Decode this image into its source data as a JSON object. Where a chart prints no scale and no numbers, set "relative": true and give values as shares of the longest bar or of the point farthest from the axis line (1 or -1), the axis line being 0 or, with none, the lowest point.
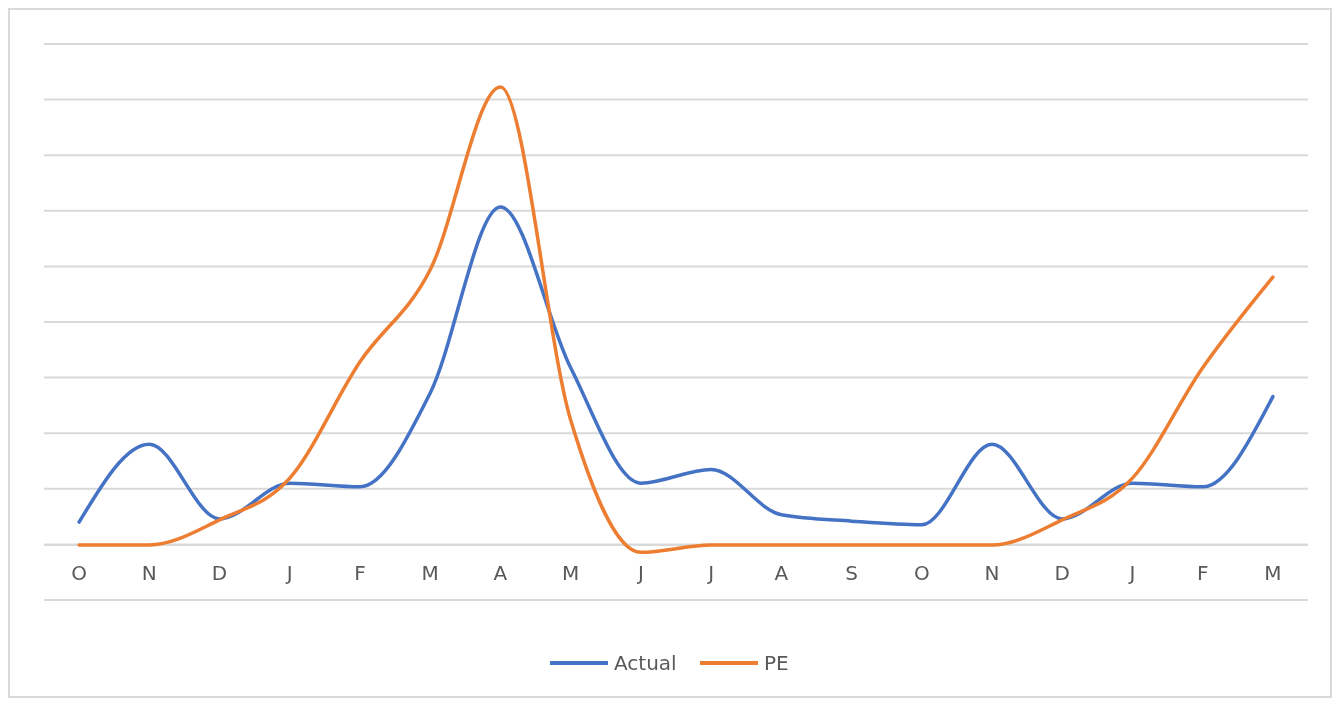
{
  "chart_data": {
    "type": "line",
    "relative": true,
    "categories": [
      "O",
      "N",
      "D",
      "J",
      "F",
      "M",
      "A",
      "M",
      "J",
      "J",
      "A",
      "S",
      "O",
      "N",
      "D",
      "J",
      "F",
      "M"
    ],
    "series": [
      {
        "name": "Actual",
        "color": "#4472c4",
        "values": [
          0.05,
          0.22,
          0.057,
          0.135,
          0.127,
          0.332,
          0.738,
          0.387,
          0.135,
          0.165,
          0.066,
          0.052,
          0.044,
          0.22,
          0.057,
          0.135,
          0.127,
          0.324
        ]
      },
      {
        "name": "PE",
        "color": "#ed7d31",
        "values": [
          0,
          0,
          0.055,
          0.146,
          0.4,
          0.601,
          1,
          0.273,
          -0.016,
          0,
          0,
          0,
          0,
          0,
          0.055,
          0.146,
          0.387,
          0.585
        ]
      }
    ],
    "grid": true,
    "legend": "bottom",
    "marker": "none",
    "line_style": "solid"
  }
}
